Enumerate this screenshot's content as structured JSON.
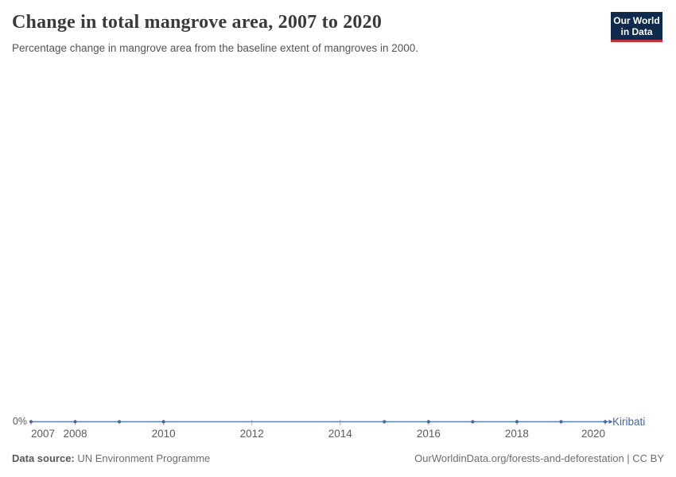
{
  "colors": {
    "accent": "#4467a3",
    "logo_bg": "#102a4e",
    "logo_bar": "#c5303e",
    "title_text": "#3a3a3a",
    "subtitle_text": "#555555",
    "axis_text": "#5b5b5b",
    "axis_tick": "#b3b3b3",
    "footer_text": "#6d6d6d"
  },
  "header": {
    "title": "Change in total mangrove area, 2007 to 2020",
    "subtitle": "Percentage change in mangrove area from the baseline extent of mangroves in 2000.",
    "logo_line1": "Our World",
    "logo_line2": "in Data"
  },
  "chart_data": {
    "type": "line",
    "title": "Change in total mangrove area, 2007 to 2020",
    "subtitle": "Percentage change in mangrove area from the baseline extent of mangroves in 2000.",
    "grid": false,
    "legend_position": "end-of-line",
    "x_axis": {
      "min": 2007,
      "max": 2020,
      "tick_labels": [
        2007,
        2008,
        2010,
        2012,
        2014,
        2016,
        2018,
        2020
      ]
    },
    "y_axis": {
      "unit": "%",
      "tick_labels": [
        "0%"
      ]
    },
    "series": [
      {
        "name": "Kiribati",
        "color": "#4467a3",
        "x": [
          2007,
          2008,
          2009,
          2010,
          2015,
          2016,
          2017,
          2018,
          2019,
          2020
        ],
        "values": [
          0,
          0,
          0,
          0,
          0,
          0,
          0,
          0,
          0,
          0
        ]
      }
    ]
  },
  "footer": {
    "source_label": "Data source:",
    "source_value": "UN Environment Programme",
    "link_text": "OurWorldinData.org/forests-and-deforestation | CC BY"
  }
}
